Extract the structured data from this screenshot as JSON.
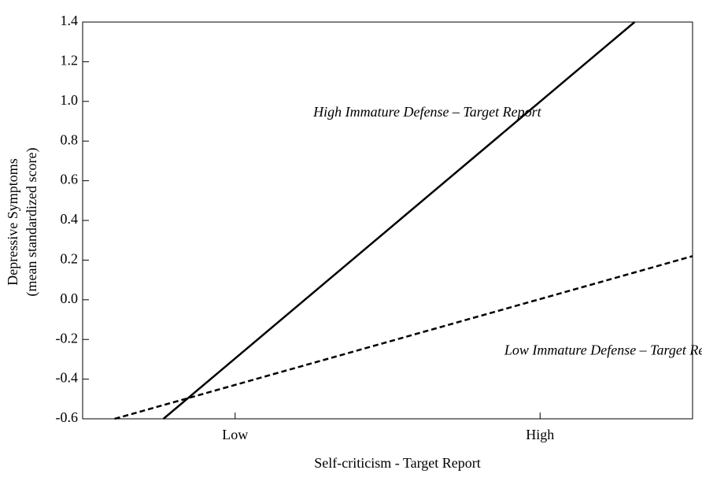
{
  "chart_data": {
    "type": "line",
    "x_label": "Self-criticism - Target Report",
    "y_label": [
      "Depressive Symptoms",
      "(mean standardized score)"
    ],
    "xlim": [
      -2,
      2
    ],
    "xticks": [
      {
        "value": -1,
        "label": "Low"
      },
      {
        "value": 1,
        "label": "High"
      }
    ],
    "ylim": [
      -0.6,
      1.4
    ],
    "yticks": [
      {
        "value": -0.6,
        "label": "-0.6"
      },
      {
        "value": -0.4,
        "label": "-0.4"
      },
      {
        "value": -0.2,
        "label": "-0.2"
      },
      {
        "value": 0,
        "label": "0.0"
      },
      {
        "value": 0.2,
        "label": "0.2"
      },
      {
        "value": 0.4,
        "label": "0.4"
      },
      {
        "value": 0.6,
        "label": "0.6"
      },
      {
        "value": 0.8,
        "label": "0.8"
      },
      {
        "value": 1,
        "label": "1.0"
      },
      {
        "value": 1.2,
        "label": "1.2"
      },
      {
        "value": 1.4,
        "label": "1.4"
      }
    ],
    "series": [
      {
        "name": "High Immature Defense – Target Report",
        "color": "#000000",
        "dash": "solid",
        "x": [
          -1.47,
          1.62
        ],
        "values": [
          -0.6,
          1.4
        ],
        "label_at": [
          0.26,
          0.94
        ]
      },
      {
        "name": "Low Immature Defense – Target Report",
        "color": "#000000",
        "dash": "dashed",
        "x": [
          -1.79,
          2.0
        ],
        "values": [
          -0.6,
          0.22
        ],
        "label_at": [
          1.5,
          -0.26
        ]
      }
    ]
  }
}
